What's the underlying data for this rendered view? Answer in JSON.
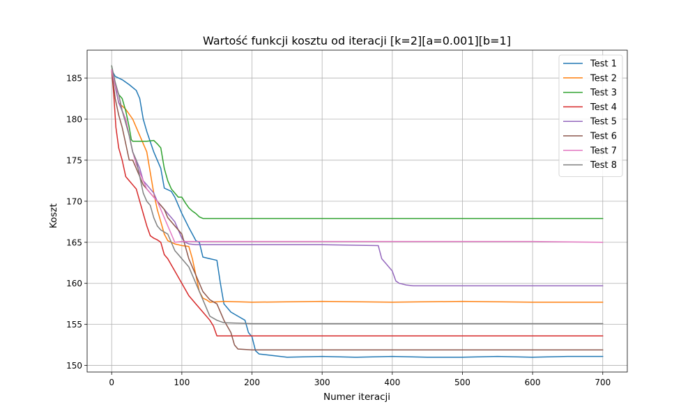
{
  "chart_data": {
    "type": "line",
    "title": "Wartość funkcji kosztu od iteracji [k=2][a=0.001][b=1]",
    "xlabel": "Numer iteracji",
    "ylabel": "Koszt",
    "xlim": [
      -35,
      735
    ],
    "ylim": [
      149.2,
      188.4
    ],
    "xticks": [
      0,
      100,
      200,
      300,
      400,
      500,
      600,
      700
    ],
    "yticks": [
      150,
      155,
      160,
      165,
      170,
      175,
      180,
      185
    ],
    "grid": true,
    "legend_position": "top-right",
    "series": [
      {
        "name": "Test 1",
        "color": "#1f77b4",
        "x": [
          0,
          5,
          15,
          25,
          35,
          40,
          45,
          50,
          60,
          70,
          75,
          85,
          90,
          100,
          110,
          115,
          120,
          125,
          130,
          140,
          150,
          155,
          160,
          170,
          180,
          190,
          195,
          200,
          205,
          210,
          220,
          250,
          300,
          350,
          400,
          450,
          500,
          550,
          600,
          650,
          700
        ],
        "y": [
          186.0,
          185.2,
          184.8,
          184.2,
          183.5,
          182.5,
          180.0,
          178.5,
          176.0,
          174.0,
          171.6,
          171.2,
          170.5,
          168.5,
          166.8,
          166.0,
          165.2,
          165.0,
          163.2,
          163.0,
          162.8,
          160.0,
          157.5,
          156.5,
          156.0,
          155.5,
          154.0,
          153.5,
          151.8,
          151.4,
          151.3,
          151.0,
          151.1,
          151.0,
          151.1,
          151.0,
          151.0,
          151.1,
          151.0,
          151.1,
          151.1
        ]
      },
      {
        "name": "Test 2",
        "color": "#ff7f0e",
        "x": [
          0,
          10,
          20,
          30,
          40,
          50,
          55,
          60,
          65,
          70,
          75,
          80,
          90,
          100,
          110,
          115,
          120,
          125,
          130,
          135,
          140,
          160,
          200,
          300,
          400,
          500,
          600,
          700
        ],
        "y": [
          186.0,
          182.0,
          181.2,
          180.0,
          178.0,
          176.0,
          173.5,
          171.0,
          169.0,
          167.5,
          166.0,
          165.2,
          164.8,
          164.6,
          164.5,
          163.0,
          161.0,
          159.0,
          158.2,
          158.0,
          157.7,
          157.8,
          157.7,
          157.8,
          157.7,
          157.8,
          157.7,
          157.7
        ]
      },
      {
        "name": "Test 3",
        "color": "#2ca02c",
        "x": [
          0,
          5,
          10,
          15,
          20,
          25,
          28,
          30,
          40,
          50,
          60,
          65,
          70,
          75,
          80,
          85,
          90,
          95,
          100,
          105,
          110,
          115,
          120,
          125,
          130,
          150,
          200,
          300,
          400,
          500,
          600,
          700
        ],
        "y": [
          186.5,
          184.0,
          183.0,
          182.5,
          181.0,
          179.0,
          177.5,
          177.3,
          177.3,
          177.3,
          177.4,
          177.0,
          176.5,
          174.0,
          172.5,
          171.5,
          171.0,
          170.5,
          170.5,
          169.8,
          169.2,
          168.8,
          168.5,
          168.1,
          167.9,
          167.9,
          167.9,
          167.9,
          167.9,
          167.9,
          167.9,
          167.9
        ]
      },
      {
        "name": "Test 4",
        "color": "#d62728",
        "x": [
          0,
          3,
          6,
          10,
          15,
          20,
          25,
          30,
          35,
          40,
          45,
          50,
          55,
          60,
          65,
          70,
          75,
          80,
          90,
          100,
          110,
          120,
          130,
          140,
          145,
          150,
          200,
          300,
          400,
          500,
          600,
          700
        ],
        "y": [
          186.0,
          183.0,
          179.0,
          176.5,
          175.0,
          173.0,
          172.5,
          172.0,
          171.5,
          170.0,
          168.5,
          167.0,
          165.8,
          165.5,
          165.3,
          165.0,
          163.5,
          163.0,
          161.5,
          160.0,
          158.5,
          157.5,
          156.5,
          155.5,
          154.8,
          153.6,
          153.6,
          153.6,
          153.6,
          153.6,
          153.6,
          153.6
        ]
      },
      {
        "name": "Test 5",
        "color": "#9467bd",
        "x": [
          0,
          5,
          10,
          15,
          20,
          25,
          30,
          35,
          40,
          45,
          50,
          55,
          60,
          65,
          70,
          75,
          80,
          85,
          90,
          95,
          100,
          105,
          110,
          120,
          200,
          300,
          380,
          385,
          390,
          395,
          400,
          405,
          410,
          420,
          430,
          500,
          600,
          700
        ],
        "y": [
          186.0,
          184.0,
          182.0,
          181.0,
          180.0,
          178.0,
          176.0,
          175.0,
          174.0,
          172.5,
          172.0,
          171.5,
          171.0,
          170.0,
          169.5,
          169.0,
          168.5,
          168.0,
          167.5,
          166.5,
          165.5,
          165.0,
          164.8,
          164.7,
          164.7,
          164.7,
          164.6,
          163.0,
          162.5,
          162.0,
          161.5,
          160.3,
          160.0,
          159.8,
          159.7,
          159.7,
          159.7,
          159.7
        ]
      },
      {
        "name": "Test 6",
        "color": "#8c564b",
        "x": [
          0,
          5,
          10,
          15,
          20,
          25,
          30,
          35,
          40,
          45,
          50,
          55,
          60,
          65,
          70,
          75,
          80,
          90,
          100,
          110,
          120,
          130,
          140,
          150,
          160,
          170,
          175,
          180,
          200,
          300,
          400,
          500,
          600,
          700
        ],
        "y": [
          186.0,
          182.5,
          180.5,
          179.0,
          177.0,
          175.0,
          175.0,
          174.0,
          173.0,
          172.0,
          171.5,
          171.0,
          170.5,
          170.0,
          169.5,
          169.0,
          168.0,
          167.0,
          166.0,
          163.0,
          161.0,
          159.0,
          158.0,
          157.5,
          155.5,
          154.0,
          152.5,
          152.0,
          151.9,
          151.9,
          151.9,
          151.9,
          151.9,
          151.9
        ]
      },
      {
        "name": "Test 7",
        "color": "#e377c2",
        "x": [
          0,
          5,
          10,
          15,
          20,
          25,
          30,
          35,
          40,
          45,
          50,
          55,
          60,
          65,
          70,
          75,
          80,
          85,
          90,
          100,
          150,
          200,
          300,
          400,
          500,
          600,
          700
        ],
        "y": [
          186.0,
          184.0,
          183.0,
          181.0,
          180.0,
          178.0,
          176.0,
          174.5,
          173.5,
          172.5,
          171.5,
          171.0,
          170.5,
          170.0,
          169.0,
          168.0,
          167.0,
          166.0,
          165.0,
          165.1,
          165.1,
          165.1,
          165.1,
          165.1,
          165.1,
          165.1,
          165.0
        ]
      },
      {
        "name": "Test 8",
        "color": "#7f7f7f",
        "x": [
          0,
          5,
          10,
          15,
          20,
          25,
          30,
          35,
          40,
          45,
          50,
          55,
          60,
          65,
          70,
          80,
          90,
          100,
          110,
          120,
          130,
          140,
          150,
          160,
          200,
          300,
          400,
          500,
          600,
          700
        ],
        "y": [
          186.5,
          184.5,
          183.0,
          181.0,
          179.5,
          178.0,
          176.0,
          175.0,
          173.0,
          171.0,
          170.0,
          169.5,
          168.0,
          167.0,
          166.5,
          166.0,
          164.0,
          163.0,
          162.0,
          160.0,
          158.0,
          156.0,
          155.5,
          155.2,
          155.1,
          155.1,
          155.1,
          155.1,
          155.1,
          155.1
        ]
      }
    ]
  }
}
